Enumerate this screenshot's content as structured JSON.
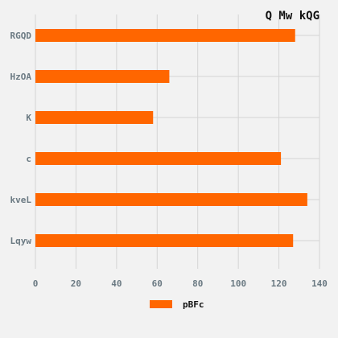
{
  "chart_data": {
    "type": "bar",
    "orientation": "horizontal",
    "title": "Q Mw kQG",
    "categories": [
      "RGQD",
      "HzOA",
      "K",
      "c",
      "kveL",
      "Lqyw"
    ],
    "series": [
      {
        "name": "pBFc",
        "values": [
          128,
          66,
          58,
          121,
          134,
          127
        ],
        "color": "#ff6600"
      }
    ],
    "xlim": [
      0,
      140
    ],
    "xticks": [
      "0",
      "20",
      "40",
      "60",
      "80",
      "100",
      "120",
      "140"
    ],
    "grid": true,
    "legend_position": "bottom"
  }
}
